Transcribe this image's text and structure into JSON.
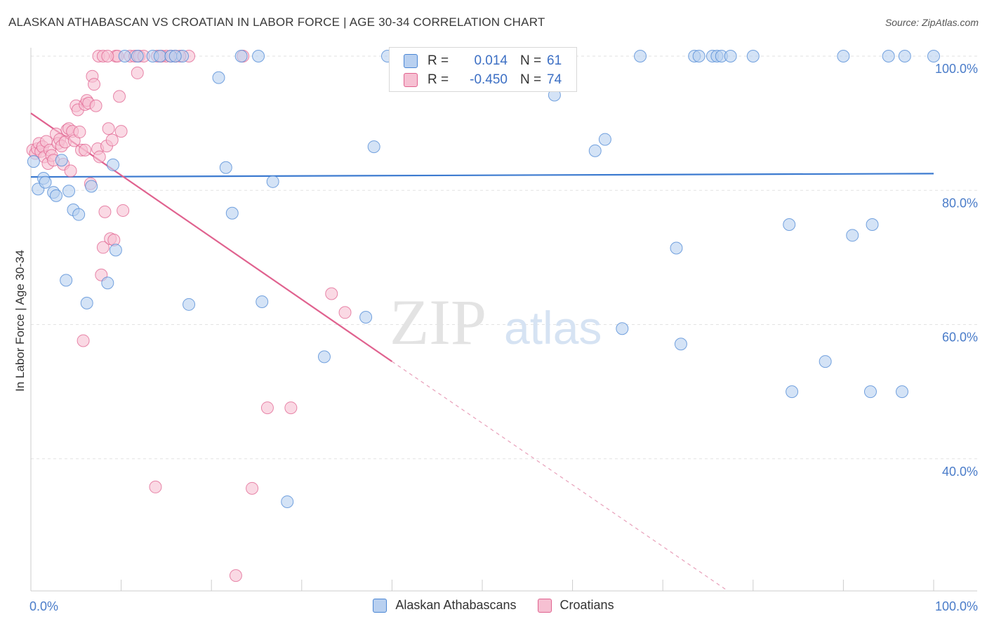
{
  "header": {
    "title": "ALASKAN ATHABASCAN VS CROATIAN IN LABOR FORCE | AGE 30-34 CORRELATION CHART",
    "source": "Source: ZipAtlas.com"
  },
  "watermark": {
    "zip": "ZIP",
    "atlas": "atlas"
  },
  "colors": {
    "blue": "#4a86d4",
    "blue_fill": "#b8d0f0",
    "pink": "#e0628f",
    "pink_fill": "#f6c0d2",
    "axis_text": "#4a7cc9",
    "grid": "#dddddd"
  },
  "legend": {
    "rows": [
      {
        "r_label": "R =",
        "r_value": "0.014",
        "n_label": "N =",
        "n_value": "61"
      },
      {
        "r_label": "R =",
        "r_value": "-0.450",
        "n_label": "N =",
        "n_value": "74"
      }
    ]
  },
  "bottom_legend": {
    "series1": "Alaskan Athabascans",
    "series2": "Croatians"
  },
  "chart_data": {
    "type": "scatter",
    "xlabel": "",
    "ylabel": "In Labor Force | Age 30-34",
    "xlim": [
      0,
      1
    ],
    "ylim": [
      0.2,
      1.03
    ],
    "x_tick_labels": [
      {
        "value": 0,
        "label": "0.0%"
      },
      {
        "value": 1,
        "label": "100.0%"
      }
    ],
    "y_tick_labels": [
      {
        "value": 1.0,
        "label": "100.0%"
      },
      {
        "value": 0.8,
        "label": "80.0%"
      },
      {
        "value": 0.6,
        "label": "60.0%"
      },
      {
        "value": 0.4,
        "label": "40.0%"
      }
    ],
    "grid": true,
    "legend_position": "top-center",
    "series": [
      {
        "name": "Alaskan Athabascans",
        "color": "#4a86d4",
        "trend": {
          "x": [
            0.0,
            1.0
          ],
          "y": [
            0.82,
            0.825
          ],
          "style": "solid"
        },
        "points": [
          [
            0.003,
            0.843
          ],
          [
            0.008,
            0.802
          ],
          [
            0.014,
            0.818
          ],
          [
            0.016,
            0.812
          ],
          [
            0.025,
            0.797
          ],
          [
            0.028,
            0.792
          ],
          [
            0.034,
            0.845
          ],
          [
            0.039,
            0.666
          ],
          [
            0.042,
            0.799
          ],
          [
            0.047,
            0.771
          ],
          [
            0.053,
            0.764
          ],
          [
            0.062,
            0.632
          ],
          [
            0.067,
            0.806
          ],
          [
            0.085,
            0.662
          ],
          [
            0.091,
            0.838
          ],
          [
            0.094,
            0.711
          ],
          [
            0.104,
            1.0
          ],
          [
            0.118,
            1.0
          ],
          [
            0.135,
            1.0
          ],
          [
            0.143,
            1.0
          ],
          [
            0.155,
            1.0
          ],
          [
            0.168,
            1.0
          ],
          [
            0.175,
            0.63
          ],
          [
            0.208,
            0.968
          ],
          [
            0.216,
            0.834
          ],
          [
            0.223,
            0.766
          ],
          [
            0.233,
            1.0
          ],
          [
            0.252,
            1.0
          ],
          [
            0.256,
            0.634
          ],
          [
            0.268,
            0.813
          ],
          [
            0.284,
            0.336
          ],
          [
            0.325,
            0.552
          ],
          [
            0.371,
            0.611
          ],
          [
            0.38,
            0.865
          ],
          [
            0.395,
            1.0
          ],
          [
            0.58,
            0.942
          ],
          [
            0.625,
            0.859
          ],
          [
            0.636,
            0.876
          ],
          [
            0.655,
            0.594
          ],
          [
            0.675,
            1.0
          ],
          [
            0.715,
            0.714
          ],
          [
            0.72,
            0.571
          ],
          [
            0.735,
            1.0
          ],
          [
            0.74,
            1.0
          ],
          [
            0.755,
            1.0
          ],
          [
            0.76,
            1.0
          ],
          [
            0.765,
            1.0
          ],
          [
            0.775,
            1.0
          ],
          [
            0.8,
            1.0
          ],
          [
            0.84,
            0.749
          ],
          [
            0.843,
            0.5
          ],
          [
            0.88,
            0.545
          ],
          [
            0.9,
            1.0
          ],
          [
            0.91,
            0.733
          ],
          [
            0.93,
            0.5
          ],
          [
            0.932,
            0.749
          ],
          [
            0.95,
            1.0
          ],
          [
            0.965,
            0.5
          ],
          [
            0.968,
            1.0
          ],
          [
            1.0,
            1.0
          ],
          [
            0.16,
            1.0
          ]
        ]
      },
      {
        "name": "Croatians",
        "color": "#e0628f",
        "trend": {
          "x": [
            0.0,
            0.4
          ],
          "y": [
            0.915,
            0.545
          ],
          "dashed_x": [
            0.4,
            0.77
          ],
          "dashed_y": [
            0.545,
            0.205
          ]
        },
        "points": [
          [
            0.002,
            0.86
          ],
          [
            0.005,
            0.855
          ],
          [
            0.007,
            0.862
          ],
          [
            0.009,
            0.87
          ],
          [
            0.011,
            0.858
          ],
          [
            0.013,
            0.865
          ],
          [
            0.015,
            0.85
          ],
          [
            0.017,
            0.873
          ],
          [
            0.019,
            0.84
          ],
          [
            0.021,
            0.86
          ],
          [
            0.023,
            0.852
          ],
          [
            0.025,
            0.845
          ],
          [
            0.028,
            0.884
          ],
          [
            0.03,
            0.87
          ],
          [
            0.032,
            0.876
          ],
          [
            0.034,
            0.866
          ],
          [
            0.036,
            0.839
          ],
          [
            0.038,
            0.872
          ],
          [
            0.04,
            0.89
          ],
          [
            0.042,
            0.892
          ],
          [
            0.044,
            0.829
          ],
          [
            0.046,
            0.888
          ],
          [
            0.048,
            0.874
          ],
          [
            0.05,
            0.926
          ],
          [
            0.052,
            0.92
          ],
          [
            0.054,
            0.887
          ],
          [
            0.056,
            0.86
          ],
          [
            0.058,
            0.576
          ],
          [
            0.06,
            0.928
          ],
          [
            0.062,
            0.934
          ],
          [
            0.064,
            0.93
          ],
          [
            0.066,
            0.81
          ],
          [
            0.068,
            0.97
          ],
          [
            0.07,
            0.958
          ],
          [
            0.072,
            0.926
          ],
          [
            0.074,
            0.862
          ],
          [
            0.076,
            0.85
          ],
          [
            0.078,
            0.674
          ],
          [
            0.08,
            0.715
          ],
          [
            0.082,
            0.768
          ],
          [
            0.084,
            0.866
          ],
          [
            0.086,
            0.892
          ],
          [
            0.088,
            0.728
          ],
          [
            0.09,
            0.875
          ],
          [
            0.092,
            0.726
          ],
          [
            0.094,
            1.0
          ],
          [
            0.096,
            1.0
          ],
          [
            0.098,
            0.94
          ],
          [
            0.1,
            0.888
          ],
          [
            0.102,
            0.77
          ],
          [
            0.11,
            1.0
          ],
          [
            0.115,
            1.0
          ],
          [
            0.118,
            0.975
          ],
          [
            0.12,
            1.0
          ],
          [
            0.125,
            1.0
          ],
          [
            0.138,
            0.358
          ],
          [
            0.15,
            1.0
          ],
          [
            0.16,
            1.0
          ],
          [
            0.175,
            1.0
          ],
          [
            0.227,
            0.226
          ],
          [
            0.235,
            1.0
          ],
          [
            0.245,
            0.356
          ],
          [
            0.262,
            0.476
          ],
          [
            0.288,
            0.476
          ],
          [
            0.333,
            0.646
          ],
          [
            0.348,
            0.618
          ],
          [
            0.075,
            1.0
          ],
          [
            0.08,
            1.0
          ],
          [
            0.085,
            1.0
          ],
          [
            0.14,
            1.0
          ],
          [
            0.145,
            1.0
          ],
          [
            0.155,
            1.0
          ],
          [
            0.165,
            1.0
          ],
          [
            0.06,
            0.86
          ]
        ]
      }
    ]
  }
}
